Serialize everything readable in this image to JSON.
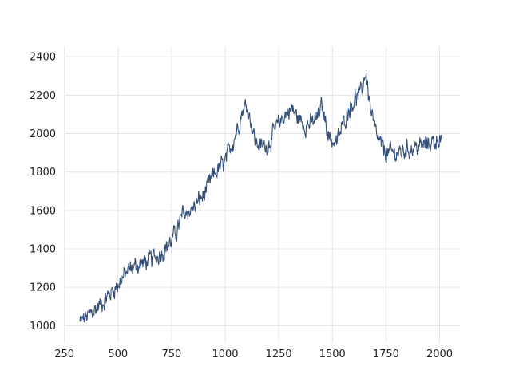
{
  "chart_data": {
    "type": "line",
    "title": "",
    "xlabel": "",
    "ylabel": "",
    "xlim": [
      255,
      2095
    ],
    "ylim": [
      910,
      2455
    ],
    "xticks": [
      250,
      500,
      750,
      1000,
      1250,
      1500,
      1750,
      2000
    ],
    "yticks": [
      1000,
      1200,
      1400,
      1600,
      1800,
      2000,
      2200,
      2400
    ],
    "grid": true,
    "legend": "none",
    "line_color": "#34507a",
    "grid_color": "#e5e5e5",
    "noise": 35,
    "series": [
      {
        "x_start": 322,
        "x_end": 2010,
        "x_step": 2,
        "anchors": [
          [
            322,
            1015
          ],
          [
            360,
            1050
          ],
          [
            400,
            1090
          ],
          [
            450,
            1150
          ],
          [
            500,
            1215
          ],
          [
            550,
            1290
          ],
          [
            600,
            1320
          ],
          [
            650,
            1340
          ],
          [
            700,
            1380
          ],
          [
            750,
            1440
          ],
          [
            780,
            1510
          ],
          [
            800,
            1575
          ],
          [
            850,
            1610
          ],
          [
            900,
            1680
          ],
          [
            950,
            1790
          ],
          [
            1000,
            1850
          ],
          [
            1030,
            1940
          ],
          [
            1060,
            2040
          ],
          [
            1080,
            2120
          ],
          [
            1100,
            2150
          ],
          [
            1120,
            2070
          ],
          [
            1140,
            1960
          ],
          [
            1170,
            1930
          ],
          [
            1200,
            1940
          ],
          [
            1230,
            2010
          ],
          [
            1260,
            2070
          ],
          [
            1290,
            2110
          ],
          [
            1310,
            2130
          ],
          [
            1340,
            2080
          ],
          [
            1370,
            2050
          ],
          [
            1400,
            2050
          ],
          [
            1430,
            2080
          ],
          [
            1450,
            2140
          ],
          [
            1470,
            2060
          ],
          [
            1490,
            1970
          ],
          [
            1520,
            1950
          ],
          [
            1550,
            2050
          ],
          [
            1580,
            2140
          ],
          [
            1610,
            2190
          ],
          [
            1630,
            2200
          ],
          [
            1645,
            2260
          ],
          [
            1655,
            2330
          ],
          [
            1665,
            2240
          ],
          [
            1680,
            2110
          ],
          [
            1700,
            2010
          ],
          [
            1720,
            1950
          ],
          [
            1750,
            1900
          ],
          [
            1780,
            1900
          ],
          [
            1820,
            1900
          ],
          [
            1850,
            1920
          ],
          [
            1900,
            1930
          ],
          [
            1950,
            1950
          ],
          [
            1980,
            1960
          ],
          [
            2000,
            1980
          ],
          [
            2010,
            1950
          ]
        ]
      }
    ]
  }
}
